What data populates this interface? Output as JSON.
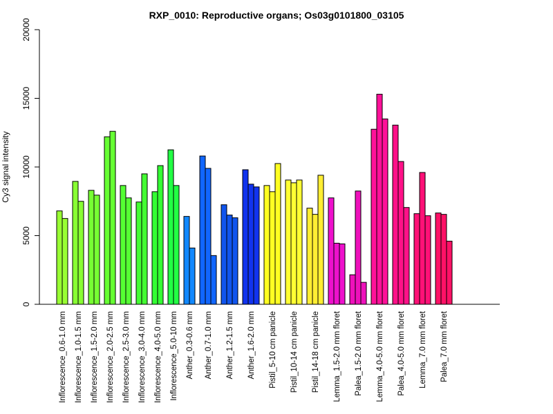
{
  "chart_data": {
    "type": "bar",
    "title": "RXP_0010: Reproductive organs; Os03g0101800_03105",
    "xlabel": "",
    "ylabel": "Cy3 signal intensity",
    "ylim": [
      0,
      20000
    ],
    "yticks": [
      0,
      5000,
      10000,
      15000,
      20000
    ],
    "grid": false,
    "legend": "none",
    "categories": [
      "Inflorescence_0.6-1.0 mm",
      "Inflorescence_1.0-1.5 mm",
      "Inflorescence_1.5-2.0 mm",
      "Inflorescence_2.0-2.5 mm",
      "Inflorescence_2.5-3.0 mm",
      "Inflorescence_3.0-4.0 mm",
      "Inflorescence_4.0-5.0 mm",
      "Inflorescence_5.0-10 mm",
      "Anther_0.3-0.6 mm",
      "Anther_0.7-1.0 mm",
      "Anther_1.2-1.5 mm",
      "Anther_1.6-2.0 mm",
      "Pistil_5-10 cm panicle",
      "Pistil_10-14 cm panicle",
      "Pistil_14-18 cm panicle",
      "Lemma_1.5-2.0 mm floret",
      "Palea_1.5-2.0 mm floret",
      "Lemma_4.0-5.0 mm floret",
      "Palea_4.0-5.0 mm floret",
      "Lemma_7.0 mm floret",
      "Palea_7.0 mm floret"
    ],
    "groups": [
      {
        "color": "#99ff33",
        "values": [
          6800,
          6250
        ]
      },
      {
        "color": "#88ff33",
        "values": [
          8950,
          7500
        ]
      },
      {
        "color": "#77ff33",
        "values": [
          8300,
          7950
        ]
      },
      {
        "color": "#66ff33",
        "values": [
          12200,
          12600
        ]
      },
      {
        "color": "#55ff33",
        "values": [
          8650,
          7750
        ]
      },
      {
        "color": "#44ff33",
        "values": [
          7450,
          9500
        ]
      },
      {
        "color": "#33ff33",
        "values": [
          8200,
          10100
        ]
      },
      {
        "color": "#22ff44",
        "values": [
          11250,
          8650
        ]
      },
      {
        "color": "#1188ff",
        "values": [
          6400,
          4100
        ]
      },
      {
        "color": "#1166ff",
        "values": [
          10800,
          9900,
          3550
        ]
      },
      {
        "color": "#1155ee",
        "values": [
          7250,
          6500,
          6300
        ]
      },
      {
        "color": "#1133ee",
        "values": [
          9800,
          8750,
          8550
        ]
      },
      {
        "color": "#ffff22",
        "values": [
          8650,
          8200,
          10250
        ]
      },
      {
        "color": "#ffff33",
        "values": [
          9050,
          8850,
          9050
        ]
      },
      {
        "color": "#ffee33",
        "values": [
          7000,
          6550,
          9400
        ]
      },
      {
        "color": "#ee11cc",
        "values": [
          7750,
          4450,
          4400
        ]
      },
      {
        "color": "#ee11bb",
        "values": [
          2150,
          8250,
          1600
        ]
      },
      {
        "color": "#ff1199",
        "values": [
          12750,
          15300,
          13500
        ]
      },
      {
        "color": "#ff1188",
        "values": [
          13050,
          10400,
          7050
        ]
      },
      {
        "color": "#ff1177",
        "values": [
          6600,
          9600,
          6450
        ]
      },
      {
        "color": "#ff1166",
        "values": [
          6650,
          6550,
          4600
        ]
      }
    ]
  }
}
